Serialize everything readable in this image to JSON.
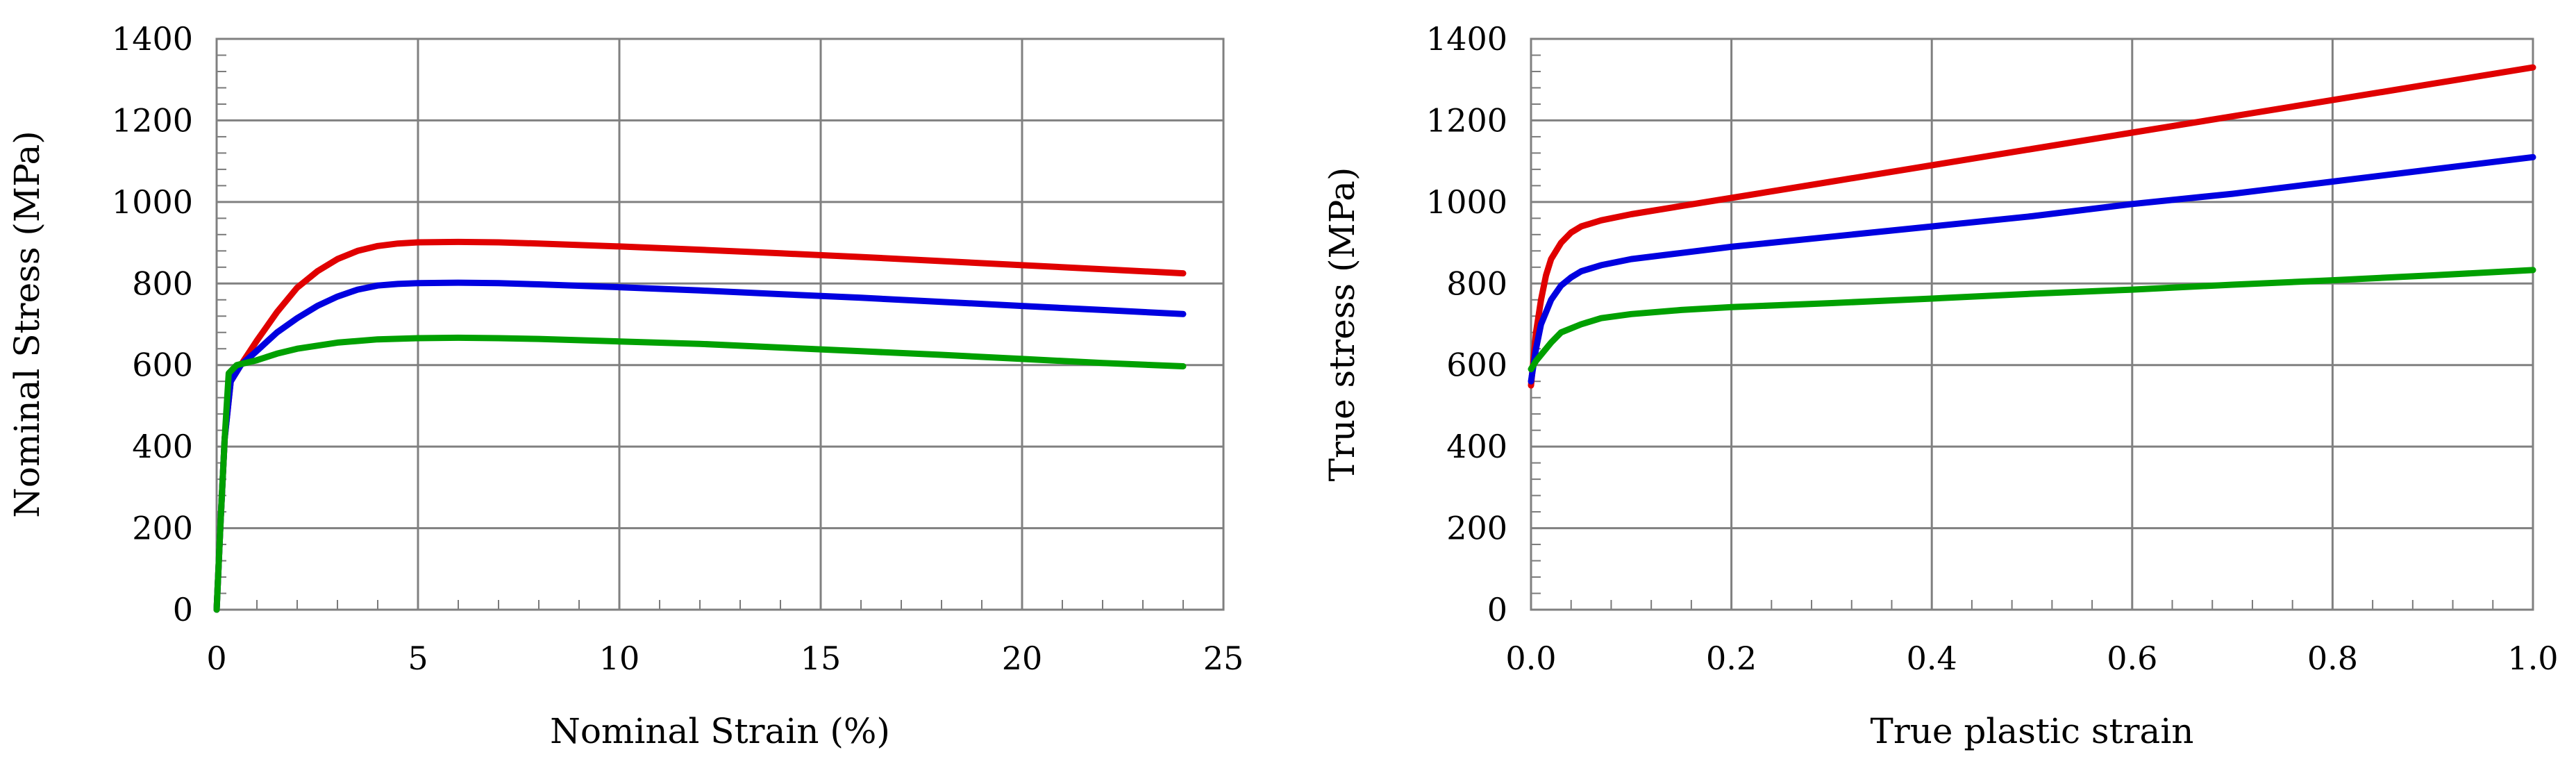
{
  "chart_data": [
    {
      "type": "line",
      "xlabel": "Nominal Strain (%)",
      "ylabel": "Nominal Stress (MPa)",
      "xlim": [
        0,
        25
      ],
      "ylim": [
        0,
        1400
      ],
      "x_ticks": [
        "0",
        "5",
        "10",
        "15",
        "20",
        "25"
      ],
      "y_ticks": [
        "0",
        "200",
        "400",
        "600",
        "800",
        "1000",
        "1200",
        "1400"
      ],
      "grid": true,
      "series": [
        {
          "color": "#e00000",
          "points": [
            [
              0,
              0
            ],
            [
              0.1,
              220
            ],
            [
              0.2,
              420
            ],
            [
              0.35,
              560
            ],
            [
              0.6,
              600
            ],
            [
              1.0,
              660
            ],
            [
              1.5,
              730
            ],
            [
              2,
              790
            ],
            [
              2.5,
              830
            ],
            [
              3,
              860
            ],
            [
              3.5,
              880
            ],
            [
              4,
              892
            ],
            [
              4.5,
              898
            ],
            [
              5,
              901
            ],
            [
              6,
              902
            ],
            [
              7,
              901
            ],
            [
              8,
              898
            ],
            [
              10,
              891
            ],
            [
              12,
              883
            ],
            [
              14,
              874
            ],
            [
              16,
              865
            ],
            [
              18,
              855
            ],
            [
              20,
              845
            ],
            [
              22,
              835
            ],
            [
              24,
              825
            ]
          ]
        },
        {
          "color": "#0000e0",
          "points": [
            [
              0,
              0
            ],
            [
              0.1,
              220
            ],
            [
              0.2,
              420
            ],
            [
              0.35,
              560
            ],
            [
              0.6,
              600
            ],
            [
              1.0,
              635
            ],
            [
              1.5,
              680
            ],
            [
              2,
              715
            ],
            [
              2.5,
              745
            ],
            [
              3,
              768
            ],
            [
              3.5,
              785
            ],
            [
              4,
              795
            ],
            [
              4.5,
              799
            ],
            [
              5,
              801
            ],
            [
              6,
              802
            ],
            [
              7,
              801
            ],
            [
              8,
              798
            ],
            [
              10,
              791
            ],
            [
              12,
              783
            ],
            [
              14,
              774
            ],
            [
              16,
              765
            ],
            [
              18,
              755
            ],
            [
              20,
              745
            ],
            [
              22,
              735
            ],
            [
              24,
              725
            ]
          ]
        },
        {
          "color": "#00a000",
          "points": [
            [
              0,
              0
            ],
            [
              0.1,
              220
            ],
            [
              0.2,
              420
            ],
            [
              0.3,
              580
            ],
            [
              0.5,
              600
            ],
            [
              1,
              612
            ],
            [
              1.5,
              628
            ],
            [
              2,
              640
            ],
            [
              3,
              655
            ],
            [
              4,
              663
            ],
            [
              5,
              666
            ],
            [
              6,
              667
            ],
            [
              7,
              666
            ],
            [
              8,
              664
            ],
            [
              10,
              658
            ],
            [
              12,
              652
            ],
            [
              14,
              643
            ],
            [
              16,
              634
            ],
            [
              18,
              625
            ],
            [
              20,
              615
            ],
            [
              22,
              605
            ],
            [
              24,
              597
            ]
          ]
        }
      ]
    },
    {
      "type": "line",
      "xlabel": "True plastic strain",
      "ylabel": "True stress (MPa)",
      "xlim": [
        0,
        1.0
      ],
      "ylim": [
        0,
        1400
      ],
      "x_ticks": [
        "0.0",
        "0.2",
        "0.4",
        "0.6",
        "0.8",
        "1.0"
      ],
      "y_ticks": [
        "0",
        "200",
        "400",
        "600",
        "800",
        "1000",
        "1200",
        "1400"
      ],
      "grid": true,
      "series": [
        {
          "color": "#e00000",
          "points": [
            [
              0,
              550
            ],
            [
              0.005,
              680
            ],
            [
              0.01,
              760
            ],
            [
              0.015,
              820
            ],
            [
              0.02,
              860
            ],
            [
              0.03,
              900
            ],
            [
              0.04,
              925
            ],
            [
              0.05,
              940
            ],
            [
              0.07,
              955
            ],
            [
              0.1,
              970
            ],
            [
              0.15,
              990
            ],
            [
              0.2,
              1010
            ],
            [
              0.3,
              1050
            ],
            [
              0.4,
              1090
            ],
            [
              0.5,
              1130
            ],
            [
              0.6,
              1170
            ],
            [
              0.7,
              1210
            ],
            [
              0.8,
              1250
            ],
            [
              0.9,
              1290
            ],
            [
              1.0,
              1330
            ]
          ]
        },
        {
          "color": "#0000e0",
          "points": [
            [
              0,
              560
            ],
            [
              0.005,
              640
            ],
            [
              0.01,
              700
            ],
            [
              0.02,
              760
            ],
            [
              0.03,
              795
            ],
            [
              0.04,
              815
            ],
            [
              0.05,
              830
            ],
            [
              0.07,
              845
            ],
            [
              0.1,
              860
            ],
            [
              0.15,
              875
            ],
            [
              0.2,
              890
            ],
            [
              0.3,
              915
            ],
            [
              0.4,
              940
            ],
            [
              0.5,
              965
            ],
            [
              0.6,
              995
            ],
            [
              0.7,
              1020
            ],
            [
              0.8,
              1050
            ],
            [
              0.9,
              1080
            ],
            [
              1.0,
              1110
            ]
          ]
        },
        {
          "color": "#00a000",
          "points": [
            [
              0,
              590
            ],
            [
              0.005,
              610
            ],
            [
              0.01,
              625
            ],
            [
              0.02,
              655
            ],
            [
              0.03,
              680
            ],
            [
              0.05,
              700
            ],
            [
              0.07,
              715
            ],
            [
              0.1,
              725
            ],
            [
              0.15,
              735
            ],
            [
              0.2,
              742
            ],
            [
              0.3,
              752
            ],
            [
              0.4,
              763
            ],
            [
              0.5,
              775
            ],
            [
              0.6,
              785
            ],
            [
              0.7,
              797
            ],
            [
              0.8,
              808
            ],
            [
              0.9,
              820
            ],
            [
              1.0,
              833
            ]
          ]
        }
      ]
    }
  ]
}
